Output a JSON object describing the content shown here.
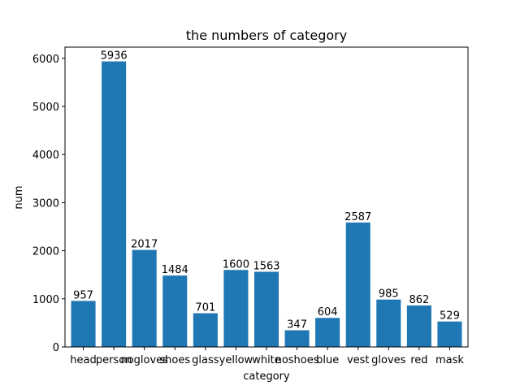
{
  "chart_data": {
    "type": "bar",
    "title": "the numbers of category",
    "xlabel": "category",
    "ylabel": "num",
    "categories": [
      "head",
      "person",
      "nogloves",
      "shoes",
      "glass",
      "yellow",
      "white",
      "noshoes",
      "blue",
      "vest",
      "gloves",
      "red",
      "mask"
    ],
    "values": [
      957,
      5936,
      2017,
      1484,
      701,
      1600,
      1563,
      347,
      604,
      2587,
      985,
      862,
      529
    ],
    "yticks": [
      0,
      1000,
      2000,
      3000,
      4000,
      5000,
      6000
    ],
    "ylim": [
      0,
      6233
    ],
    "bar_color": "#1f77b4",
    "grid": false,
    "legend": false,
    "data_labels": true
  }
}
